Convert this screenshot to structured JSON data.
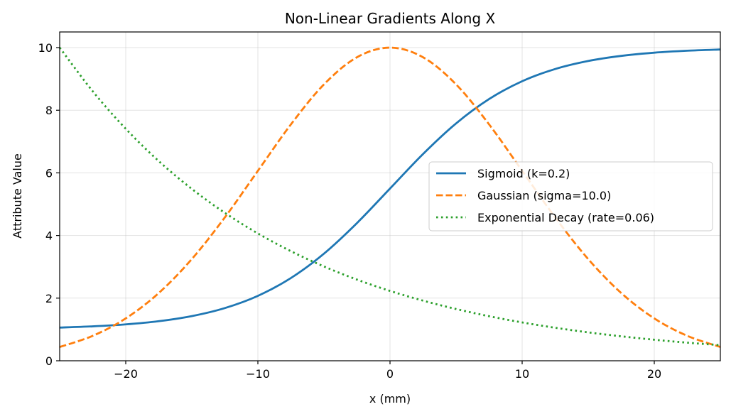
{
  "chart_data": {
    "type": "line",
    "title": "Non-Linear Gradients Along X",
    "xlabel": "x (mm)",
    "ylabel": "Attribute Value",
    "xlim": [
      -25,
      25
    ],
    "ylim": [
      0,
      10.5
    ],
    "xticks": [
      -20,
      -10,
      0,
      10,
      20
    ],
    "yticks": [
      0,
      2,
      4,
      6,
      8,
      10
    ],
    "grid": true,
    "legend_position": "center-right",
    "x": [
      -25,
      -22.5,
      -20,
      -17.5,
      -15,
      -12.5,
      -10,
      -7.5,
      -5,
      -2.5,
      0,
      2.5,
      5,
      7.5,
      10,
      12.5,
      15,
      17.5,
      20,
      22.5,
      25
    ],
    "series": [
      {
        "name": "Sigmoid (k=0.2)",
        "color": "#1f77b4",
        "style": "solid",
        "values": [
          1.06,
          1.099,
          1.162,
          1.264,
          1.427,
          1.683,
          2.073,
          2.642,
          3.421,
          4.398,
          5.5,
          6.602,
          7.579,
          8.358,
          8.927,
          9.317,
          9.573,
          9.736,
          9.838,
          9.901,
          9.94
        ]
      },
      {
        "name": "Gaussian (sigma=10.0)",
        "color": "#ff7f0e",
        "style": "dashed",
        "values": [
          0.439,
          0.796,
          1.353,
          2.163,
          3.247,
          4.578,
          6.065,
          7.548,
          8.825,
          9.692,
          10,
          9.692,
          8.825,
          7.548,
          6.065,
          4.578,
          3.247,
          2.163,
          1.353,
          0.796,
          0.439
        ]
      },
      {
        "name": "Exponential Decay (rate=0.06)",
        "color": "#2ca02c",
        "style": "dotted",
        "values": [
          10,
          8.607,
          7.408,
          6.376,
          5.488,
          4.724,
          4.066,
          3.499,
          3.012,
          2.592,
          2.231,
          1.92,
          1.653,
          1.423,
          1.225,
          1.054,
          0.907,
          0.781,
          0.672,
          0.578,
          0.498
        ]
      }
    ]
  }
}
